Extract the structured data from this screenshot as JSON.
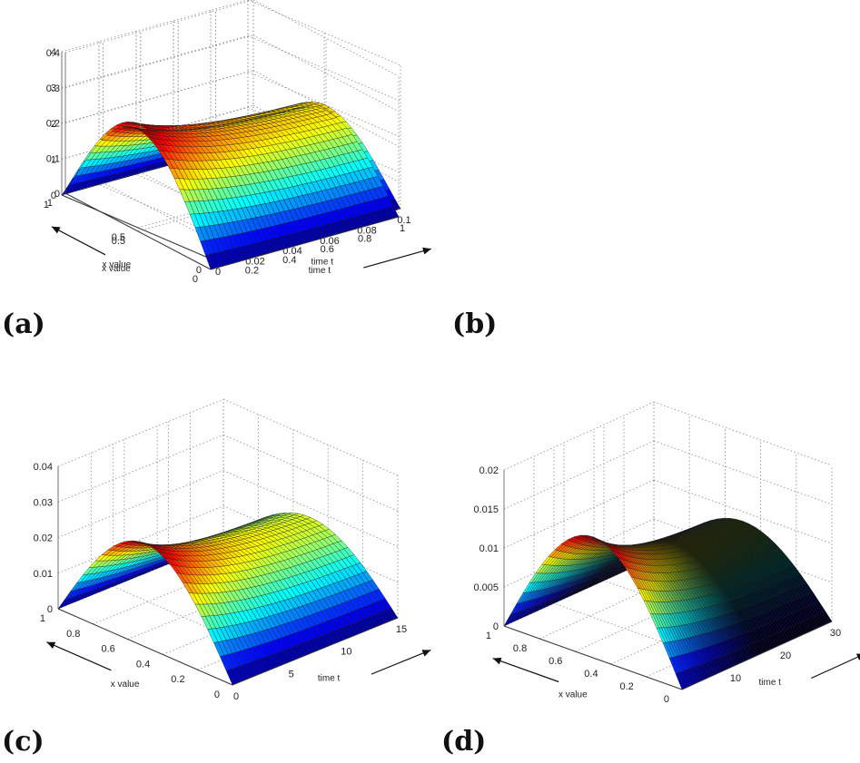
{
  "chart_data": [
    {
      "type": "surface",
      "caption": "(a)",
      "xlabel": "x value",
      "tlabel": "time t",
      "x_range": [
        0,
        1
      ],
      "x_ticks": [
        0,
        0.5,
        1
      ],
      "t_range": [
        0,
        0.1
      ],
      "t_ticks": [
        0,
        0.02,
        0.04,
        0.06,
        0.08,
        0.1
      ],
      "z_range": [
        0,
        4
      ],
      "z_ticks": [
        0,
        1,
        2,
        3,
        4
      ],
      "arrows": false,
      "colormap": "jet",
      "peak_value": 2.9,
      "end_value": 1.95
    },
    {
      "type": "surface",
      "caption": "(b)",
      "xlabel": "x value",
      "tlabel": "time t",
      "x_range": [
        0,
        1
      ],
      "x_ticks": [
        0,
        0.5,
        1
      ],
      "t_range": [
        0,
        1
      ],
      "t_ticks": [
        0.2,
        0.4,
        0.6,
        0.8,
        1
      ],
      "z_range": [
        0,
        0.4
      ],
      "z_ticks": [
        0,
        0.1,
        0.2,
        0.3,
        0.4
      ],
      "arrows": true,
      "colormap": "jet",
      "peak_value": 0.29,
      "end_value": 0.19
    },
    {
      "type": "surface",
      "caption": "(c)",
      "xlabel": "x value",
      "tlabel": "time t",
      "x_range": [
        0,
        1
      ],
      "x_ticks": [
        0,
        0.2,
        0.4,
        0.6,
        0.8,
        1
      ],
      "t_range": [
        0,
        15
      ],
      "t_ticks": [
        0,
        5,
        10,
        15
      ],
      "z_range": [
        0,
        0.04
      ],
      "z_ticks": [
        0,
        0.01,
        0.02,
        0.03,
        0.04
      ],
      "arrows": true,
      "colormap": "jet",
      "peak_value": 0.029,
      "end_value": 0.017
    },
    {
      "type": "surface",
      "caption": "(d)",
      "xlabel": "x value",
      "tlabel": "time t",
      "x_range": [
        0,
        1
      ],
      "x_ticks": [
        0,
        0.2,
        0.4,
        0.6,
        0.8,
        1
      ],
      "t_range": [
        0,
        30
      ],
      "t_ticks": [
        10,
        20,
        30
      ],
      "z_range": [
        0,
        0.02
      ],
      "z_ticks": [
        0,
        0.005,
        0.01,
        0.015,
        0.02
      ],
      "arrows": true,
      "colormap": "jet-dark",
      "peak_value": 0.0155,
      "end_value": 0.0085
    }
  ]
}
